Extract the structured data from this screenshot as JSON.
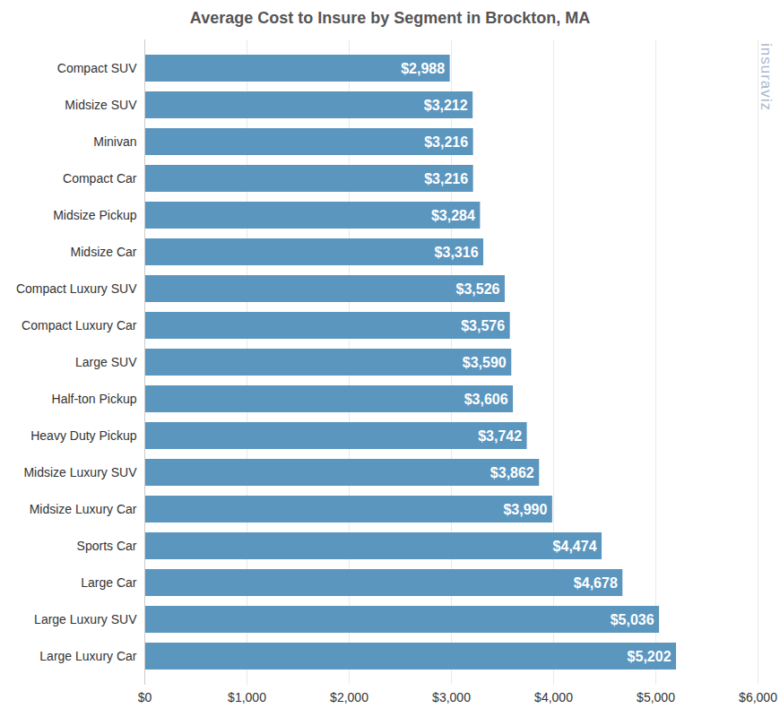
{
  "chart_data": {
    "type": "bar",
    "orientation": "horizontal",
    "title": "Average Cost to Insure by Segment in Brockton, MA",
    "categories": [
      "Compact SUV",
      "Midsize SUV",
      "Minivan",
      "Compact Car",
      "Midsize Pickup",
      "Midsize Car",
      "Compact Luxury SUV",
      "Compact Luxury Car",
      "Large SUV",
      "Half-ton Pickup",
      "Heavy Duty Pickup",
      "Midsize Luxury SUV",
      "Midsize Luxury Car",
      "Sports Car",
      "Large Car",
      "Large Luxury SUV",
      "Large Luxury Car"
    ],
    "values": [
      2988,
      3212,
      3216,
      3216,
      3284,
      3316,
      3526,
      3576,
      3590,
      3606,
      3742,
      3862,
      3990,
      4474,
      4678,
      5036,
      5202
    ],
    "value_labels": [
      "$2,988",
      "$3,212",
      "$3,216",
      "$3,216",
      "$3,284",
      "$3,316",
      "$3,526",
      "$3,576",
      "$3,590",
      "$3,606",
      "$3,742",
      "$3,862",
      "$3,990",
      "$4,474",
      "$4,678",
      "$5,036",
      "$5,202"
    ],
    "color": "#5b96bf",
    "xlim": [
      0,
      6000
    ],
    "xticks": [
      {
        "value": 0,
        "label": "$0"
      },
      {
        "value": 1000,
        "label": "$1,000"
      },
      {
        "value": 2000,
        "label": "$2,000"
      },
      {
        "value": 3000,
        "label": "$3,000"
      },
      {
        "value": 4000,
        "label": "$4,000"
      },
      {
        "value": 5000,
        "label": "$5,000"
      },
      {
        "value": 6000,
        "label": "$6,000"
      }
    ],
    "grid": true,
    "data_labels": true,
    "annotations": [
      {
        "text": "insuraviz"
      }
    ]
  }
}
